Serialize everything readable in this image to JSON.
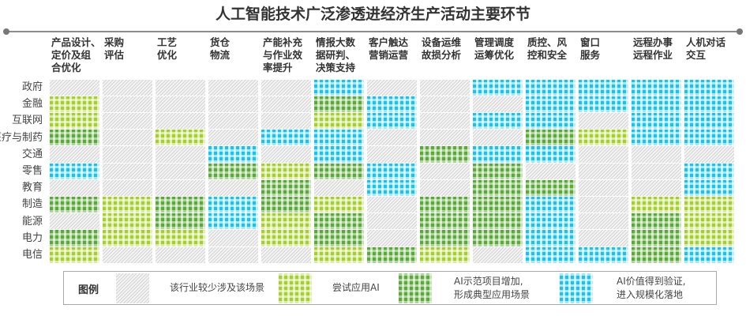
{
  "chart_data": {
    "type": "heatmap",
    "title": "人工智能技术广泛渗透进经济生产活动主要环节",
    "columns": [
      "产品设计、\n定价及组\n合优化",
      "采购\n评估",
      "工艺\n优化",
      "货仓\n物流",
      "产能补充\n与作业效\n率提升",
      "情报大数\n据研判、\n决策支持",
      "客户触达\n营销运营",
      "设备运维\n故损分析",
      "管理调度\n运筹优化",
      "质控、风\n控和安全",
      "窗口\n服务",
      "远程办事\n远程作业",
      "人机对话\n交互"
    ],
    "rows": [
      "政府",
      "金融",
      "互联网",
      "医疗与制药",
      "交通",
      "零售",
      "教育",
      "制造",
      "能源",
      "电力",
      "电信"
    ],
    "values": [
      [
        0,
        0,
        0,
        0,
        0,
        3,
        0,
        0,
        3,
        3,
        3,
        3,
        3
      ],
      [
        1,
        0,
        0,
        0,
        0,
        2,
        3,
        0,
        0,
        3,
        3,
        3,
        3
      ],
      [
        1,
        0,
        0,
        0,
        0,
        1,
        3,
        0,
        3,
        3,
        0,
        3,
        3
      ],
      [
        2,
        0,
        1,
        0,
        3,
        3,
        0,
        0,
        0,
        2,
        1,
        3,
        3
      ],
      [
        0,
        0,
        0,
        3,
        0,
        3,
        0,
        2,
        3,
        3,
        0,
        0,
        0
      ],
      [
        3,
        0,
        0,
        2,
        1,
        2,
        3,
        0,
        2,
        0,
        0,
        0,
        3
      ],
      [
        0,
        0,
        0,
        0,
        2,
        0,
        3,
        0,
        2,
        2,
        0,
        0,
        3
      ],
      [
        2,
        1,
        2,
        3,
        2,
        1,
        0,
        2,
        2,
        3,
        0,
        1,
        1
      ],
      [
        0,
        1,
        2,
        3,
        1,
        2,
        0,
        2,
        2,
        3,
        0,
        2,
        1
      ],
      [
        2,
        1,
        1,
        0,
        1,
        2,
        0,
        2,
        2,
        3,
        0,
        2,
        1
      ],
      [
        1,
        0,
        0,
        0,
        0,
        1,
        2,
        1,
        0,
        3,
        3,
        2,
        3
      ]
    ],
    "levels": [
      {
        "value": 0,
        "label": "该行业较少涉及该场景",
        "color": "#d4d4d4"
      },
      {
        "value": 1,
        "label": "尝试应用AI",
        "color": "#a6cf2a"
      },
      {
        "value": 2,
        "label": "AI示范项目增加,\n形成典型应用场景",
        "color": "#5aa93a"
      },
      {
        "value": 3,
        "label": "AI价值得到验证,\n进入规模化落地",
        "color": "#18c3f0"
      }
    ],
    "legend_title": "图例",
    "legend_position": "bottom"
  }
}
